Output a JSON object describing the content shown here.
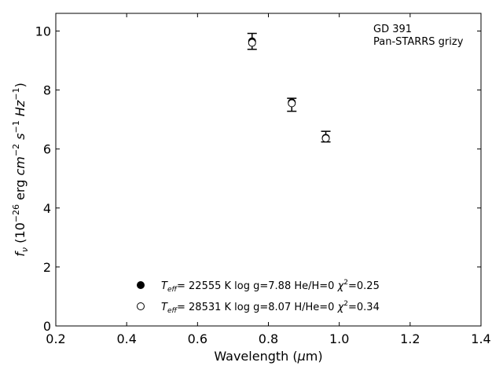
{
  "chart_data": {
    "type": "scatter",
    "xlabel": "Wavelength (μm)",
    "ylabel": "f_ν (10⁻²⁶ erg cm⁻² s⁻¹ Hz⁻¹)",
    "xlim": [
      0.2,
      1.4
    ],
    "ylim": [
      0,
      10.6
    ],
    "xticks": [
      "0.2",
      "0.4",
      "0.6",
      "0.8",
      "1.0",
      "1.2",
      "1.4"
    ],
    "yticks": [
      "0",
      "2",
      "4",
      "6",
      "8",
      "10"
    ],
    "grid": false,
    "legend_position": "lower-center",
    "annotation": [
      "GD 391",
      "Pan-STARRS grizy"
    ],
    "observed": {
      "x": [
        0.754,
        0.866,
        0.962
      ],
      "y": [
        9.65,
        7.5,
        6.42
      ],
      "yerr": [
        0.27,
        0.22,
        0.18
      ]
    },
    "series": [
      {
        "name": "T_eff= 22555 K  log g=7.88  He/H=0  χ²=0.25",
        "marker": "filled-circle",
        "x": [
          0.754,
          0.866,
          0.962
        ],
        "y": [
          9.65,
          7.58,
          6.38
        ]
      },
      {
        "name": "T_eff= 28531 K  log g=8.07  H/He=0  χ²=0.34",
        "marker": "open-circle",
        "x": [
          0.754,
          0.866,
          0.962
        ],
        "y": [
          9.6,
          7.55,
          6.36
        ]
      }
    ],
    "legend": [
      {
        "teff": "22555",
        "rest": "  log g=7.88  He/H=0  ",
        "chi": "=0.25",
        "marker": "filled-circle"
      },
      {
        "teff": "28531",
        "rest": "  log g=8.07  H/He=0  ",
        "chi": "=0.34",
        "marker": "open-circle"
      }
    ]
  }
}
